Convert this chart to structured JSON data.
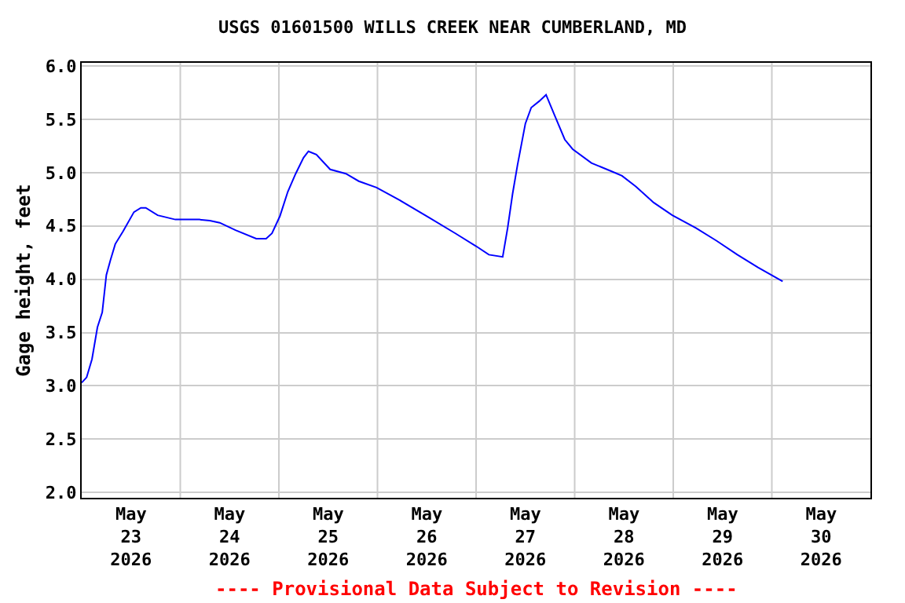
{
  "chart_data": {
    "type": "line",
    "title": "USGS 01601500 WILLS CREEK NEAR CUMBERLAND, MD",
    "ylabel": "Gage height, feet",
    "annotations": [
      "---- Provisional Data Subject to Revision ----"
    ],
    "x": [
      "2026-05-23T00:00",
      "2026-05-23T01:12",
      "2026-05-23T02:30",
      "2026-05-23T03:50",
      "2026-05-23T05:00",
      "2026-05-23T06:00",
      "2026-05-23T07:00",
      "2026-05-23T08:10",
      "2026-05-23T10:05",
      "2026-05-23T12:43",
      "2026-05-23T14:24",
      "2026-05-23T15:36",
      "2026-05-23T18:29",
      "2026-05-23T22:48",
      "2026-05-24T04:34",
      "2026-05-24T07:12",
      "2026-05-24T09:36",
      "2026-05-24T13:26",
      "2026-05-24T18:29",
      "2026-05-24T20:53",
      "2026-05-24T22:19",
      "2026-05-25T00:14",
      "2026-05-25T02:10",
      "2026-05-25T04:05",
      "2026-05-25T06:00",
      "2026-05-25T07:12",
      "2026-05-25T09:07",
      "2026-05-25T12:29",
      "2026-05-25T16:19",
      "2026-05-25T19:26",
      "2026-05-25T23:46",
      "2026-05-26T05:02",
      "2026-05-26T12:29",
      "2026-05-26T18:58",
      "2026-05-27T00:00",
      "2026-05-27T03:07",
      "2026-05-27T06:29",
      "2026-05-27T07:41",
      "2026-05-27T08:53",
      "2026-05-27T10:05",
      "2026-05-27T12:00",
      "2026-05-27T13:26",
      "2026-05-27T15:22",
      "2026-05-27T17:02",
      "2026-05-27T19:12",
      "2026-05-27T21:36",
      "2026-05-27T23:31",
      "2026-05-28T04:05",
      "2026-05-28T09:07",
      "2026-05-28T11:31",
      "2026-05-28T14:53",
      "2026-05-28T19:12",
      "2026-05-28T23:46",
      "2026-05-29T05:31",
      "2026-05-29T10:34",
      "2026-05-29T15:36",
      "2026-05-29T20:38",
      "2026-05-30T02:38"
    ],
    "series": [
      {
        "color": "#0000ff",
        "values": [
          3.03,
          3.08,
          3.25,
          3.55,
          3.69,
          4.04,
          4.18,
          4.33,
          4.45,
          4.63,
          4.67,
          4.67,
          4.6,
          4.56,
          4.56,
          4.55,
          4.53,
          4.46,
          4.38,
          4.38,
          4.43,
          4.59,
          4.82,
          4.99,
          5.14,
          5.2,
          5.17,
          5.03,
          4.99,
          4.92,
          4.86,
          4.75,
          4.58,
          4.43,
          4.31,
          4.23,
          4.21,
          4.48,
          4.8,
          5.07,
          5.46,
          5.61,
          5.67,
          5.73,
          5.53,
          5.31,
          5.22,
          5.09,
          5.01,
          4.97,
          4.87,
          4.72,
          4.6,
          4.48,
          4.36,
          4.23,
          4.11,
          3.98
        ]
      }
    ],
    "xlim": [
      "2026-05-23",
      "2026-05-31"
    ],
    "xticks": [
      {
        "value": "2026-05-23T12:00",
        "label": "May\n23\n2026"
      },
      {
        "value": "2026-05-24T12:00",
        "label": "May\n24\n2026"
      },
      {
        "value": "2026-05-25T12:00",
        "label": "May\n25\n2026"
      },
      {
        "value": "2026-05-26T12:00",
        "label": "May\n26\n2026"
      },
      {
        "value": "2026-05-27T12:00",
        "label": "May\n27\n2026"
      },
      {
        "value": "2026-05-28T12:00",
        "label": "May\n28\n2026"
      },
      {
        "value": "2026-05-29T12:00",
        "label": "May\n29\n2026"
      },
      {
        "value": "2026-05-30T12:00",
        "label": "May\n30\n2026"
      },
      {
        "value": "2026-05-24",
        "label": null
      },
      {
        "value": "2026-05-25",
        "label": null
      },
      {
        "value": "2026-05-26",
        "label": null
      },
      {
        "value": "2026-05-27",
        "label": null
      },
      {
        "value": "2026-05-28",
        "label": null
      },
      {
        "value": "2026-05-29",
        "label": null
      },
      {
        "value": "2026-05-30",
        "label": null
      }
    ],
    "ylim": [
      1.95,
      6.03
    ],
    "yticks": [
      {
        "value": 2,
        "label": "2.0"
      },
      {
        "value": 2.5,
        "label": "2.5"
      },
      {
        "value": 3,
        "label": "3.0"
      },
      {
        "value": 3.5,
        "label": "3.5"
      },
      {
        "value": 4,
        "label": "4.0"
      },
      {
        "value": 4.5,
        "label": "4.5"
      },
      {
        "value": 5,
        "label": "5.0"
      },
      {
        "value": 5.5,
        "label": "5.5"
      },
      {
        "value": 6,
        "label": "6.0"
      }
    ],
    "grid": true,
    "marker": "none",
    "line_style": "solid"
  }
}
